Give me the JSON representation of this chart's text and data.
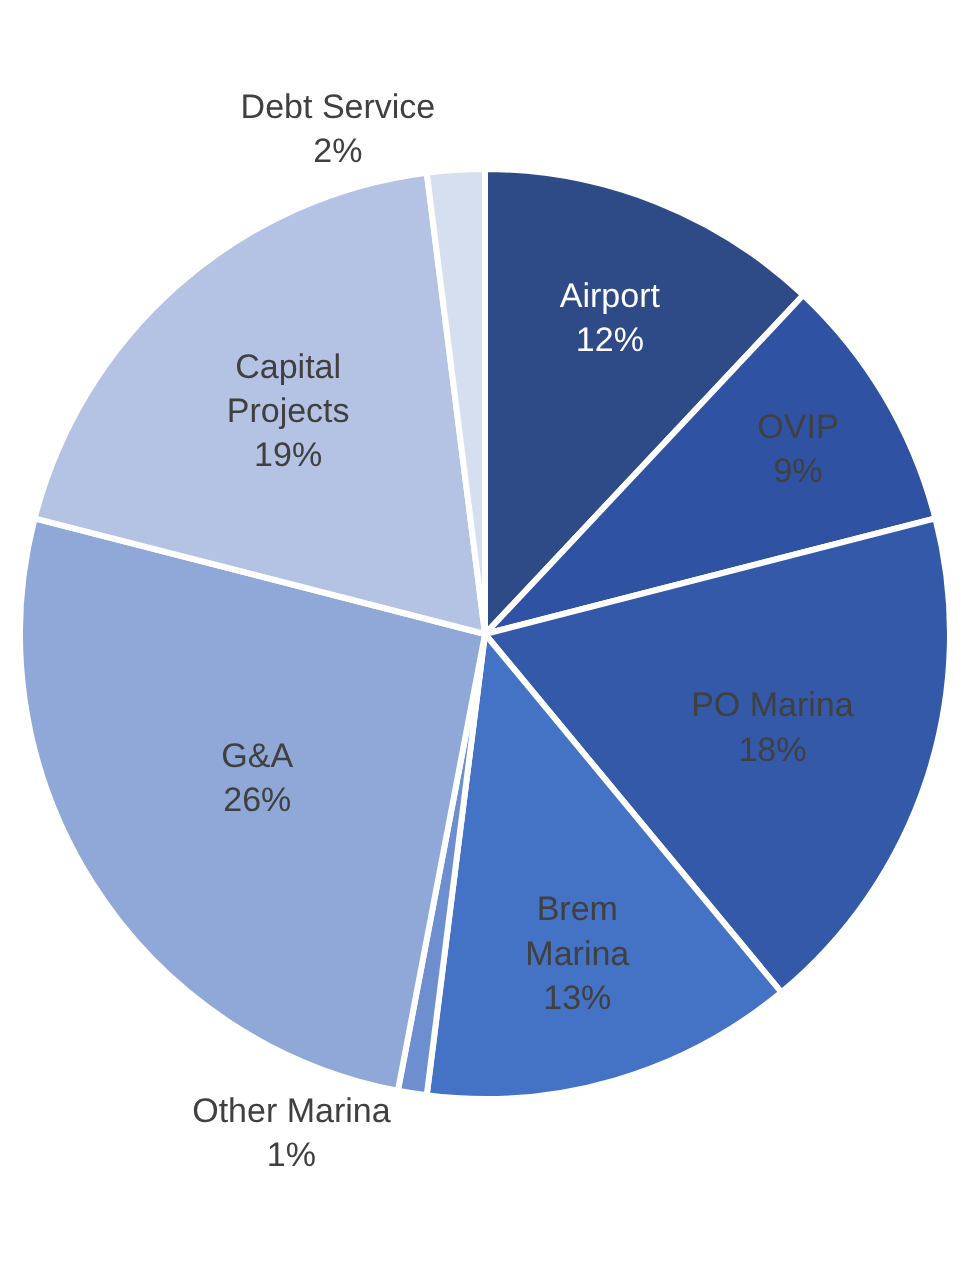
{
  "chart_data": {
    "type": "pie",
    "categories": [
      "Airport",
      "OVIP",
      "PO Marina",
      "Brem Marina",
      "Other Marina",
      "G&A",
      "Capital Projects",
      "Debt Service"
    ],
    "values": [
      12,
      9,
      18,
      13,
      1,
      26,
      19,
      2
    ],
    "value_labels": [
      "12%",
      "9%",
      "18%",
      "13%",
      "1%",
      "26%",
      "19%",
      "2%"
    ],
    "colors": [
      "#2e4a87",
      "#2f52a2",
      "#3459a8",
      "#4472c4",
      "#6d8fd0",
      "#8fa8d8",
      "#b4c3e3",
      "#d6dff0"
    ],
    "legend": false
  }
}
